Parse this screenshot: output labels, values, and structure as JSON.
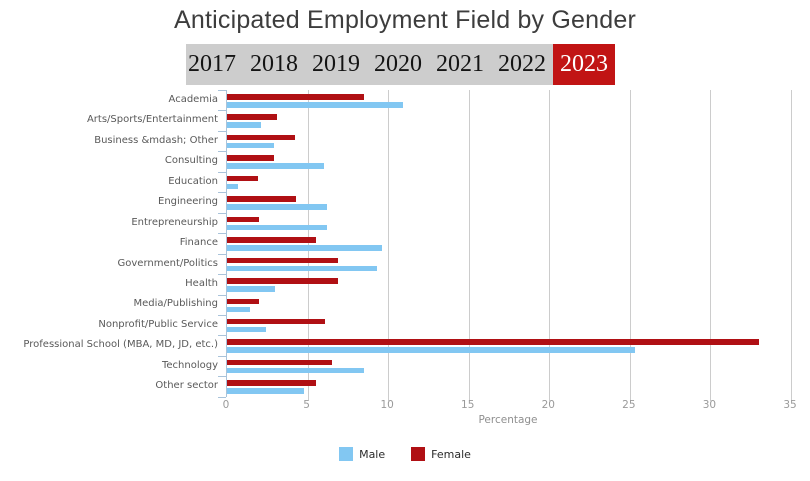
{
  "title": "Anticipated Employment Field by Gender",
  "year_nav": {
    "years": [
      "2017",
      "2018",
      "2019",
      "2020",
      "2021",
      "2022",
      "2023"
    ],
    "active_year": "2023",
    "active_bg": "#c11414",
    "active_text": "#ffffff",
    "bar_bg": "#cdcdcd"
  },
  "chart_data": {
    "type": "bar",
    "orientation": "horizontal",
    "title": "Anticipated Employment Field by Gender",
    "xlabel": "Percentage",
    "xlim": [
      0,
      35
    ],
    "xticks": [
      0,
      5,
      10,
      15,
      20,
      25,
      30,
      35
    ],
    "grid": true,
    "legend_position": "bottom",
    "categories": [
      "Academia",
      "Arts/Sports/Entertainment",
      "Business &mdash; Other",
      "Consulting",
      "Education",
      "Engineering",
      "Entrepreneurship",
      "Finance",
      "Government/Politics",
      "Health",
      "Media/Publishing",
      "Nonprofit/Public Service",
      "Professional School (MBA, MD, JD, etc.)",
      "Technology",
      "Other sector"
    ],
    "series": [
      {
        "name": "Male",
        "color": "#82c7f2",
        "values": [
          10.9,
          2.1,
          2.9,
          6.0,
          0.7,
          6.2,
          6.2,
          9.6,
          9.3,
          3.0,
          1.4,
          2.4,
          25.3,
          8.5,
          4.8
        ]
      },
      {
        "name": "Female",
        "color": "#b01014",
        "values": [
          8.5,
          3.1,
          4.2,
          2.9,
          1.9,
          4.3,
          2.0,
          5.5,
          6.9,
          6.9,
          2.0,
          6.1,
          33.0,
          6.5,
          5.5
        ]
      }
    ],
    "bar_order_top_to_bottom": [
      "Female",
      "Male"
    ]
  }
}
